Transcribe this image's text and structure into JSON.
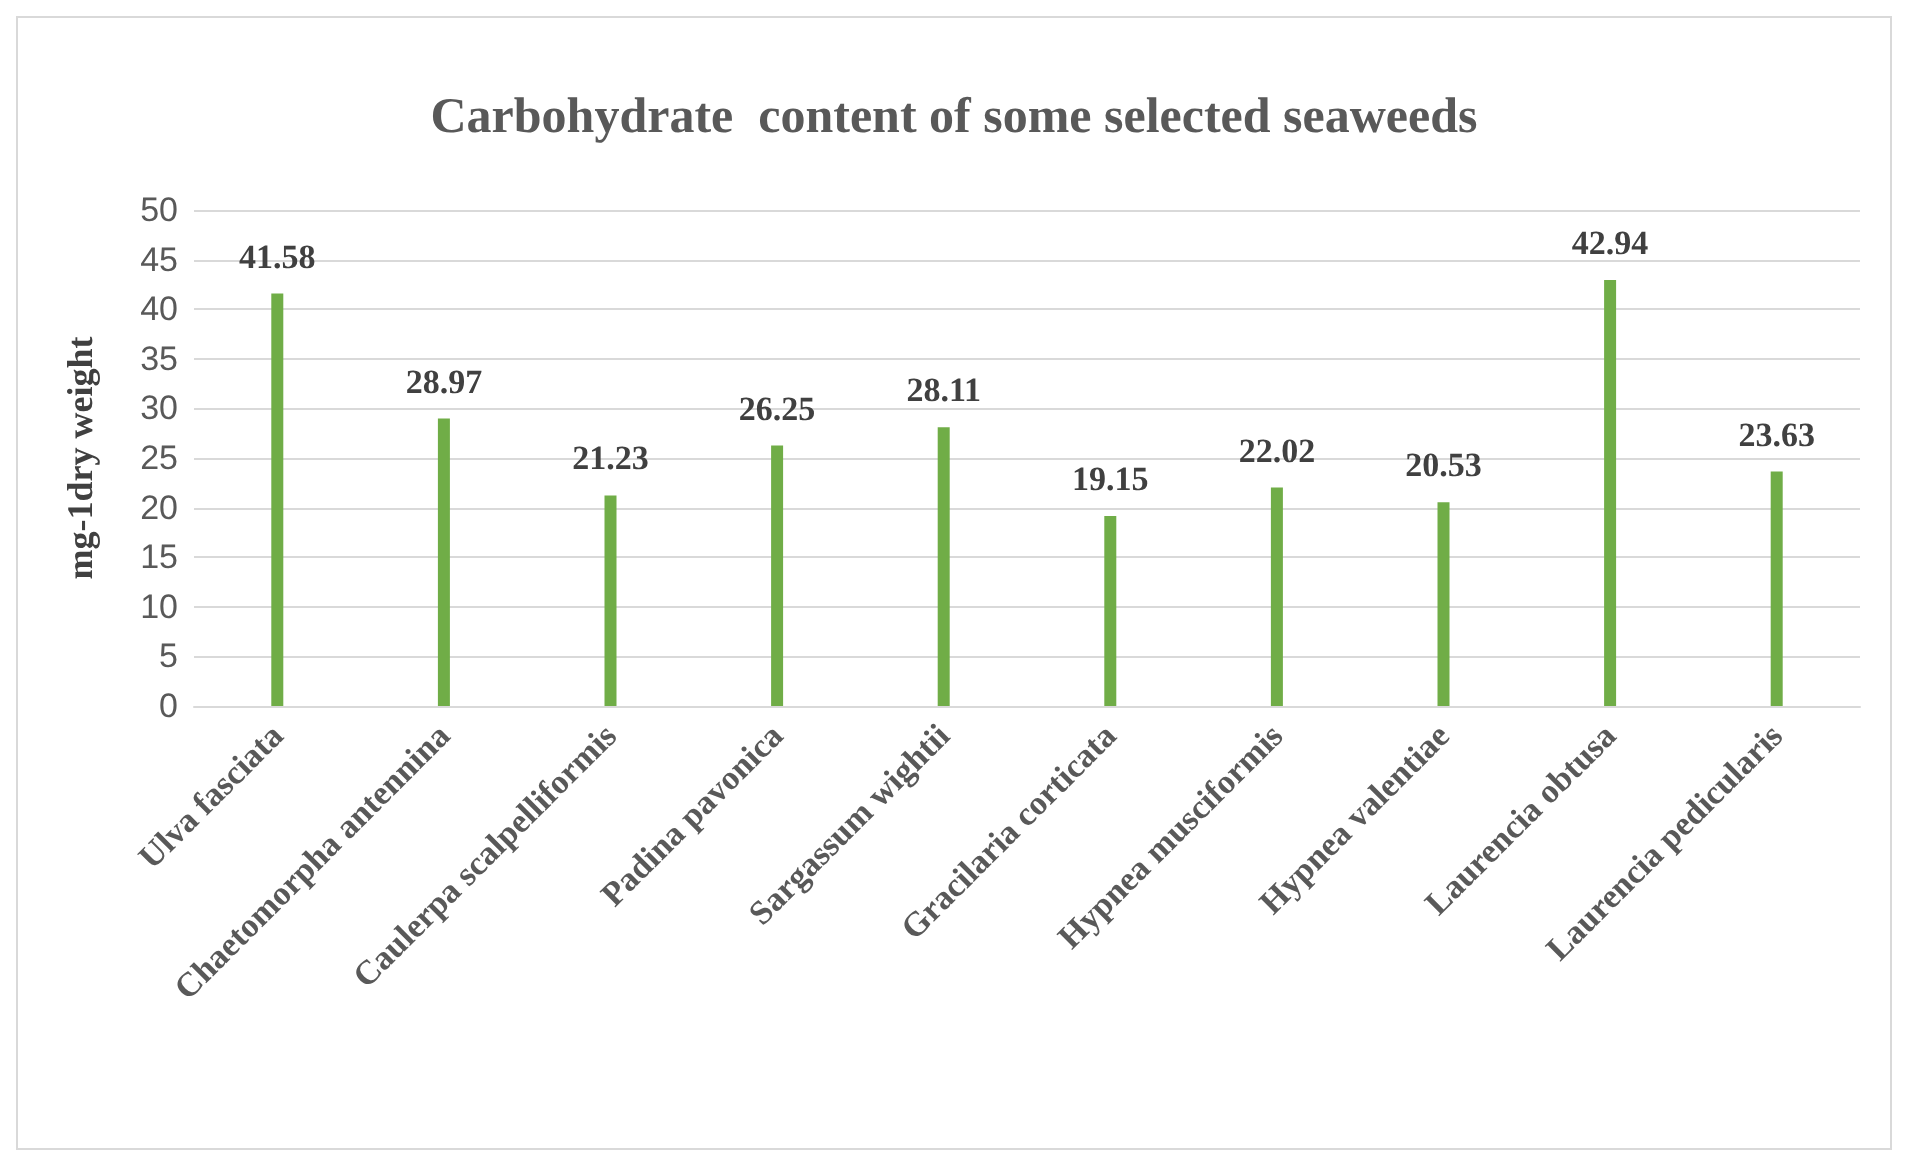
{
  "chart_data": {
    "type": "bar",
    "title": "Carbohydrate  content of some selected seaweeds",
    "ylabel": "mg-1dry weight",
    "categories": [
      "Ulva fasciata",
      "Chaetomorpha antennina",
      "Caulerpa scalpelliformis",
      "Padina pavonica",
      "Sargassum wightii",
      "Gracilaria corticata",
      "Hypnea musciformis",
      "Hypnea valentiae",
      "Laurencia obtusa",
      "Laurencia pedicularis"
    ],
    "values": [
      41.58,
      28.97,
      21.23,
      26.25,
      28.11,
      19.15,
      22.02,
      20.53,
      42.94,
      23.63
    ],
    "color": "#70ad47",
    "ylim": [
      0,
      50
    ],
    "yticks": [
      0,
      5,
      10,
      15,
      20,
      25,
      30,
      35,
      40,
      45,
      50
    ],
    "grid": "y",
    "data_labels": true
  }
}
